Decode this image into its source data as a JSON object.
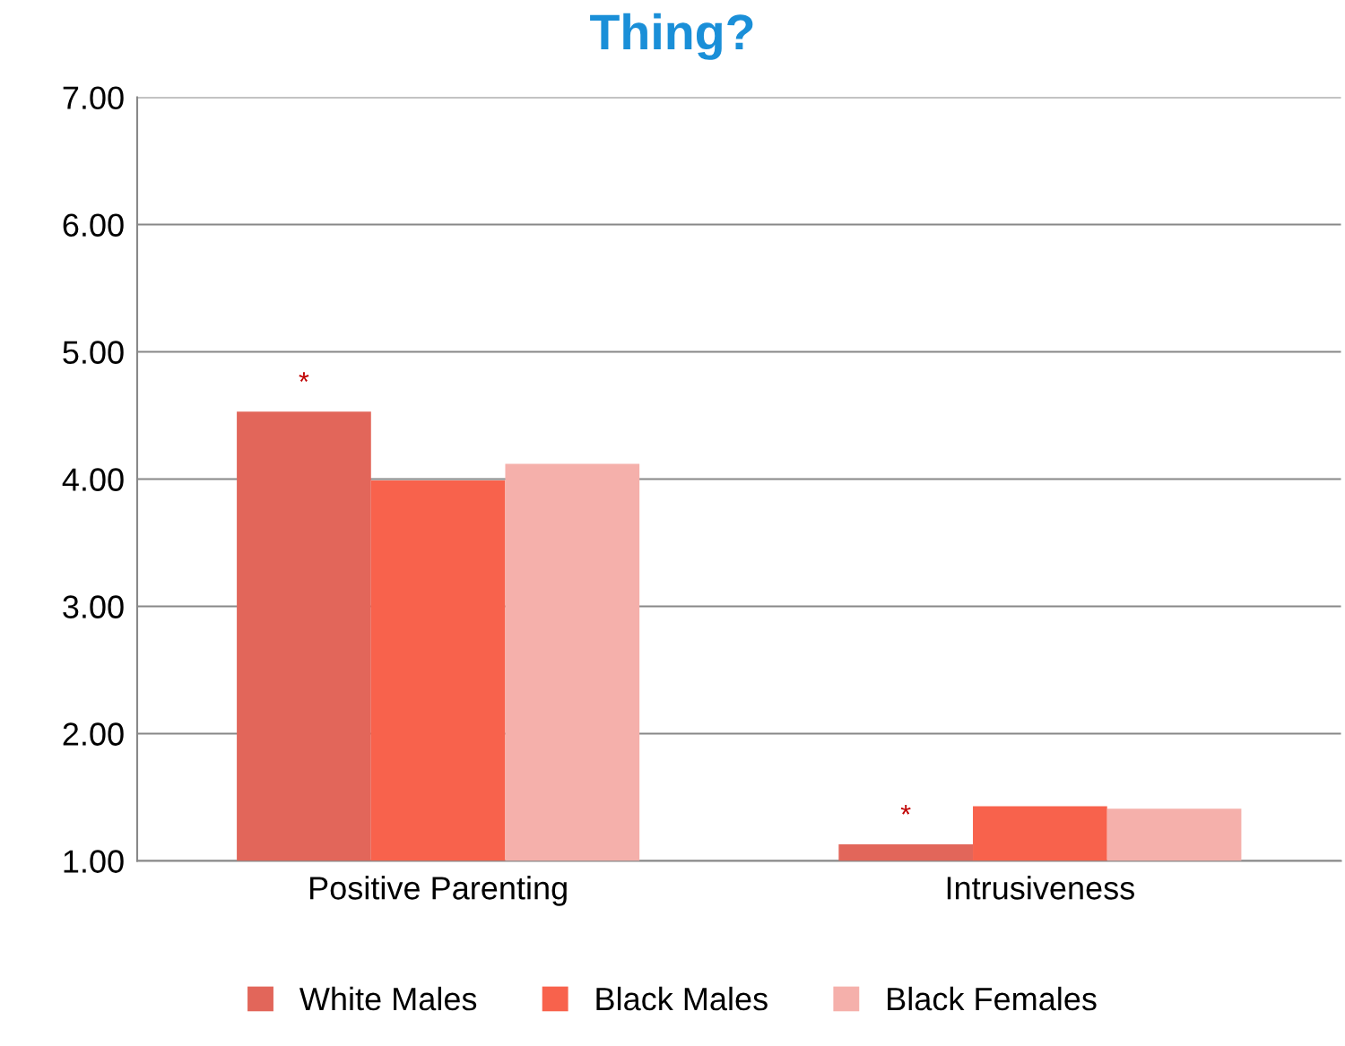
{
  "chart_data": {
    "type": "bar",
    "title": "Thing?",
    "categories": [
      "Positive Parenting",
      "Intrusiveness"
    ],
    "series": [
      {
        "name": "White Males",
        "color": "#e2665a",
        "values": [
          4.53,
          1.13
        ]
      },
      {
        "name": "Black Males",
        "color": "#f8624c",
        "values": [
          3.99,
          1.43
        ]
      },
      {
        "name": "Black Females",
        "color": "#f5b0ab",
        "values": [
          4.12,
          1.41
        ]
      }
    ],
    "ylim": [
      1,
      7
    ],
    "yticks": [
      {
        "value": 1,
        "label": "1.00"
      },
      {
        "value": 2,
        "label": "2.00"
      },
      {
        "value": 3,
        "label": "3.00"
      },
      {
        "value": 4,
        "label": "4.00"
      },
      {
        "value": 5,
        "label": "5.00"
      },
      {
        "value": 6,
        "label": "6.00"
      },
      {
        "value": 7,
        "label": "7.00"
      }
    ],
    "grid": "y",
    "legend": "bottom",
    "annotations": [
      "*",
      "*"
    ]
  }
}
